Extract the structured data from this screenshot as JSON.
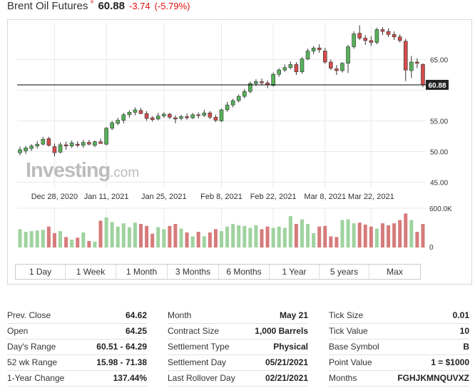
{
  "header": {
    "title": "Brent Oil Futures",
    "star": "*",
    "price": "60.88",
    "change": "-3.74",
    "change_pct": "(-5.79%)"
  },
  "watermark": {
    "brand": "Investing",
    "suffix": ".com"
  },
  "colors": {
    "up": "#57b15a",
    "down": "#d34c4c",
    "vol_up": "#9fd39f",
    "vol_down": "#d67b7b",
    "grid": "#e9e9e9",
    "price_line": "#000000",
    "price_tag_bg": "#222222"
  },
  "range_buttons": [
    "1 Day",
    "1 Week",
    "1 Month",
    "3 Months",
    "6 Months",
    "1 Year",
    "5 years",
    "Max"
  ],
  "stats": {
    "col1": [
      {
        "label": "Prev. Close",
        "value": "64.62"
      },
      {
        "label": "Open",
        "value": "64.25"
      },
      {
        "label": "Day's Range",
        "value": "60.51 - 64.29"
      },
      {
        "label": "52 wk Range",
        "value": "15.98 - 71.38"
      },
      {
        "label": "1-Year Change",
        "value": "137.44%"
      }
    ],
    "col2": [
      {
        "label": "Month",
        "value": "May 21"
      },
      {
        "label": "Contract Size",
        "value": "1,000 Barrels"
      },
      {
        "label": "Settlement Type",
        "value": "Physical"
      },
      {
        "label": "Settlement Day",
        "value": "05/21/2021"
      },
      {
        "label": "Last Rollover Day",
        "value": "02/21/2021"
      }
    ],
    "col3": [
      {
        "label": "Tick Size",
        "value": "0.01"
      },
      {
        "label": "Tick Value",
        "value": "10"
      },
      {
        "label": "Base Symbol",
        "value": "B"
      },
      {
        "label": "Point Value",
        "value": "1 = $1000"
      },
      {
        "label": "Months",
        "value": "FGHJKMNQUVXZ"
      }
    ]
  },
  "chart_data": {
    "type": "candlestick",
    "y_ticks": [
      45,
      50,
      55,
      60,
      65
    ],
    "y_tick_labels": [
      "45.00",
      "50.00",
      "55.00",
      "",
      "65.00"
    ],
    "ylim": [
      44,
      71
    ],
    "x_tick_labels": [
      "Dec 28, 2020",
      "Jan 11, 2021",
      "Jan 25, 2021",
      "Feb 8, 2021",
      "Feb 22, 2021",
      "Mar 8, 2021",
      "Mar 22, 2021"
    ],
    "x_tick_index": [
      6,
      15,
      25,
      35,
      44,
      53,
      61
    ],
    "current_price": 60.88,
    "current_price_label": "60.88",
    "volume_tick_labels": [
      "600.0K",
      "0"
    ],
    "volume_max": 600,
    "candles": [
      {
        "o": 49.8,
        "h": 50.8,
        "l": 49.4,
        "c": 50.3,
        "v": 280
      },
      {
        "o": 50.1,
        "h": 50.9,
        "l": 49.6,
        "c": 50.6,
        "v": 240
      },
      {
        "o": 50.5,
        "h": 51.2,
        "l": 50.1,
        "c": 50.9,
        "v": 250
      },
      {
        "o": 50.9,
        "h": 51.7,
        "l": 50.5,
        "c": 51.2,
        "v": 260
      },
      {
        "o": 51.2,
        "h": 52.4,
        "l": 51.0,
        "c": 52.0,
        "v": 270
      },
      {
        "o": 52.1,
        "h": 52.4,
        "l": 50.8,
        "c": 51.0,
        "v": 320
      },
      {
        "o": 50.8,
        "h": 51.3,
        "l": 49.2,
        "c": 49.8,
        "v": 220
      },
      {
        "o": 49.9,
        "h": 51.5,
        "l": 49.7,
        "c": 51.1,
        "v": 250
      },
      {
        "o": 51.1,
        "h": 51.6,
        "l": 50.3,
        "c": 50.9,
        "v": 160
      },
      {
        "o": 50.9,
        "h": 51.8,
        "l": 50.6,
        "c": 51.4,
        "v": 120
      },
      {
        "o": 51.2,
        "h": 51.7,
        "l": 50.7,
        "c": 51.0,
        "v": 150
      },
      {
        "o": 51.0,
        "h": 51.9,
        "l": 50.6,
        "c": 51.5,
        "v": 230
      },
      {
        "o": 51.5,
        "h": 51.9,
        "l": 51.0,
        "c": 51.2,
        "v": 100
      },
      {
        "o": 51.0,
        "h": 51.8,
        "l": 50.7,
        "c": 51.6,
        "v": 90
      },
      {
        "o": 51.6,
        "h": 52.1,
        "l": 51.3,
        "c": 51.3,
        "v": 410
      },
      {
        "o": 51.2,
        "h": 54.0,
        "l": 51.0,
        "c": 53.8,
        "v": 460
      },
      {
        "o": 53.8,
        "h": 55.0,
        "l": 53.5,
        "c": 54.7,
        "v": 390
      },
      {
        "o": 54.6,
        "h": 55.5,
        "l": 54.3,
        "c": 55.1,
        "v": 320
      },
      {
        "o": 55.1,
        "h": 56.3,
        "l": 54.6,
        "c": 56.0,
        "v": 370
      },
      {
        "o": 56.0,
        "h": 56.7,
        "l": 55.5,
        "c": 56.4,
        "v": 310
      },
      {
        "o": 56.4,
        "h": 57.2,
        "l": 55.9,
        "c": 56.8,
        "v": 380
      },
      {
        "o": 56.7,
        "h": 57.1,
        "l": 56.1,
        "c": 56.2,
        "v": 360
      },
      {
        "o": 56.2,
        "h": 56.6,
        "l": 55.0,
        "c": 55.4,
        "v": 330
      },
      {
        "o": 55.5,
        "h": 55.8,
        "l": 54.9,
        "c": 55.2,
        "v": 210
      },
      {
        "o": 55.3,
        "h": 56.3,
        "l": 55.1,
        "c": 55.8,
        "v": 310
      },
      {
        "o": 55.8,
        "h": 56.4,
        "l": 55.5,
        "c": 56.1,
        "v": 280
      },
      {
        "o": 56.1,
        "h": 56.3,
        "l": 55.3,
        "c": 55.6,
        "v": 330
      },
      {
        "o": 55.5,
        "h": 55.9,
        "l": 54.6,
        "c": 55.3,
        "v": 360
      },
      {
        "o": 55.4,
        "h": 56.0,
        "l": 55.1,
        "c": 55.7,
        "v": 290
      },
      {
        "o": 55.7,
        "h": 56.2,
        "l": 55.2,
        "c": 55.5,
        "v": 230
      },
      {
        "o": 55.5,
        "h": 56.3,
        "l": 55.3,
        "c": 56.0,
        "v": 170
      },
      {
        "o": 56.0,
        "h": 56.4,
        "l": 55.4,
        "c": 55.9,
        "v": 240
      },
      {
        "o": 55.9,
        "h": 56.8,
        "l": 55.6,
        "c": 56.3,
        "v": 170
      },
      {
        "o": 56.3,
        "h": 56.6,
        "l": 55.3,
        "c": 55.6,
        "v": 230
      },
      {
        "o": 55.6,
        "h": 56.0,
        "l": 54.8,
        "c": 55.1,
        "v": 280
      },
      {
        "o": 55.0,
        "h": 57.0,
        "l": 54.8,
        "c": 56.8,
        "v": 250
      },
      {
        "o": 56.8,
        "h": 58.1,
        "l": 56.5,
        "c": 57.6,
        "v": 320
      },
      {
        "o": 57.6,
        "h": 58.6,
        "l": 57.2,
        "c": 58.3,
        "v": 360
      },
      {
        "o": 58.3,
        "h": 59.3,
        "l": 58.0,
        "c": 59.0,
        "v": 340
      },
      {
        "o": 59.0,
        "h": 60.2,
        "l": 58.7,
        "c": 59.8,
        "v": 330
      },
      {
        "o": 59.8,
        "h": 61.4,
        "l": 59.5,
        "c": 61.1,
        "v": 300
      },
      {
        "o": 61.1,
        "h": 61.8,
        "l": 60.7,
        "c": 61.4,
        "v": 340
      },
      {
        "o": 61.4,
        "h": 61.9,
        "l": 60.9,
        "c": 61.2,
        "v": 280
      },
      {
        "o": 61.2,
        "h": 61.6,
        "l": 60.3,
        "c": 60.9,
        "v": 320
      },
      {
        "o": 60.8,
        "h": 62.9,
        "l": 60.6,
        "c": 62.6,
        "v": 300
      },
      {
        "o": 62.6,
        "h": 63.6,
        "l": 62.2,
        "c": 63.3,
        "v": 320
      },
      {
        "o": 63.3,
        "h": 64.2,
        "l": 63.0,
        "c": 63.7,
        "v": 300
      },
      {
        "o": 63.7,
        "h": 64.7,
        "l": 63.4,
        "c": 64.2,
        "v": 480
      },
      {
        "o": 64.2,
        "h": 64.6,
        "l": 62.5,
        "c": 63.0,
        "v": 360
      },
      {
        "o": 63.0,
        "h": 65.4,
        "l": 62.7,
        "c": 65.1,
        "v": 430
      },
      {
        "o": 65.1,
        "h": 66.8,
        "l": 64.9,
        "c": 66.4,
        "v": 360
      },
      {
        "o": 66.4,
        "h": 67.2,
        "l": 65.9,
        "c": 66.9,
        "v": 220
      },
      {
        "o": 66.9,
        "h": 67.5,
        "l": 66.1,
        "c": 66.6,
        "v": 320
      },
      {
        "o": 66.4,
        "h": 66.9,
        "l": 64.3,
        "c": 64.6,
        "v": 330
      },
      {
        "o": 64.6,
        "h": 65.0,
        "l": 63.3,
        "c": 63.6,
        "v": 170
      },
      {
        "o": 63.5,
        "h": 64.1,
        "l": 62.5,
        "c": 63.2,
        "v": 160
      },
      {
        "o": 63.2,
        "h": 64.6,
        "l": 62.9,
        "c": 64.4,
        "v": 420
      },
      {
        "o": 64.4,
        "h": 67.4,
        "l": 62.8,
        "c": 67.1,
        "v": 430
      },
      {
        "o": 67.1,
        "h": 69.6,
        "l": 66.8,
        "c": 69.2,
        "v": 370
      },
      {
        "o": 69.3,
        "h": 70.6,
        "l": 68.2,
        "c": 68.5,
        "v": 380
      },
      {
        "o": 68.5,
        "h": 69.0,
        "l": 67.4,
        "c": 68.1,
        "v": 350
      },
      {
        "o": 68.1,
        "h": 68.8,
        "l": 67.2,
        "c": 67.8,
        "v": 320
      },
      {
        "o": 67.8,
        "h": 70.2,
        "l": 67.5,
        "c": 69.9,
        "v": 290
      },
      {
        "o": 69.9,
        "h": 70.3,
        "l": 69.0,
        "c": 69.6,
        "v": 370
      },
      {
        "o": 69.6,
        "h": 70.1,
        "l": 68.7,
        "c": 69.1,
        "v": 340
      },
      {
        "o": 69.1,
        "h": 69.6,
        "l": 68.2,
        "c": 68.7,
        "v": 370
      },
      {
        "o": 68.7,
        "h": 69.1,
        "l": 67.8,
        "c": 68.1,
        "v": 420
      },
      {
        "o": 68.0,
        "h": 68.4,
        "l": 61.5,
        "c": 63.3,
        "v": 520
      },
      {
        "o": 63.2,
        "h": 65.6,
        "l": 62.0,
        "c": 64.6,
        "v": 420
      },
      {
        "o": 64.6,
        "h": 65.2,
        "l": 63.6,
        "c": 64.4,
        "v": 240
      },
      {
        "o": 64.2,
        "h": 64.4,
        "l": 60.5,
        "c": 60.9,
        "v": 360
      }
    ]
  }
}
